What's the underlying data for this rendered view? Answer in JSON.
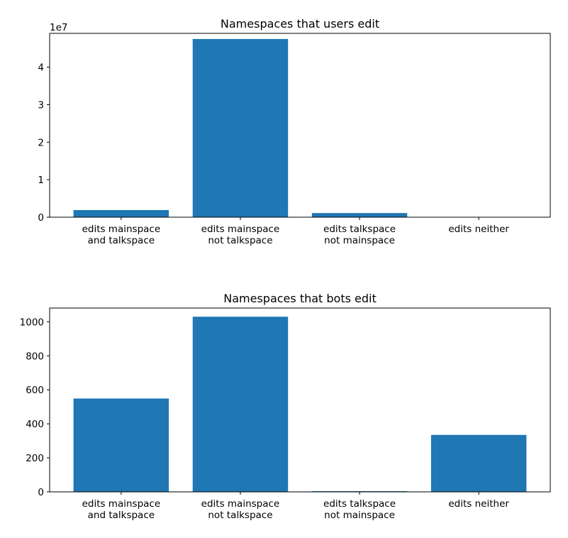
{
  "chart_data": [
    {
      "type": "bar",
      "title": "Namespaces that users edit",
      "categories": [
        [
          "edits mainspace",
          "and talkspace"
        ],
        [
          "edits mainspace",
          "not talkspace"
        ],
        [
          "edits talkspace",
          "not mainspace"
        ],
        [
          "edits neither"
        ]
      ],
      "values": [
        1900000,
        47500000,
        1100000,
        0
      ],
      "ylim": [
        0,
        49000000
      ],
      "yticks": [
        0,
        10000000,
        20000000,
        30000000,
        40000000
      ],
      "ytick_labels": [
        "0",
        "1",
        "2",
        "3",
        "4"
      ],
      "y_offset_label": "1e7",
      "grid": false,
      "bar_color": "#1f77b4"
    },
    {
      "type": "bar",
      "title": "Namespaces that bots edit",
      "categories": [
        [
          "edits mainspace",
          "and talkspace"
        ],
        [
          "edits mainspace",
          "not talkspace"
        ],
        [
          "edits talkspace",
          "not mainspace"
        ],
        [
          "edits neither"
        ]
      ],
      "values": [
        549,
        1030,
        4,
        335
      ],
      "ylim": [
        0,
        1081
      ],
      "yticks": [
        0,
        200,
        400,
        600,
        800,
        1000
      ],
      "ytick_labels": [
        "0",
        "200",
        "400",
        "600",
        "800",
        "1000"
      ],
      "grid": false,
      "bar_color": "#1f77b4"
    }
  ]
}
